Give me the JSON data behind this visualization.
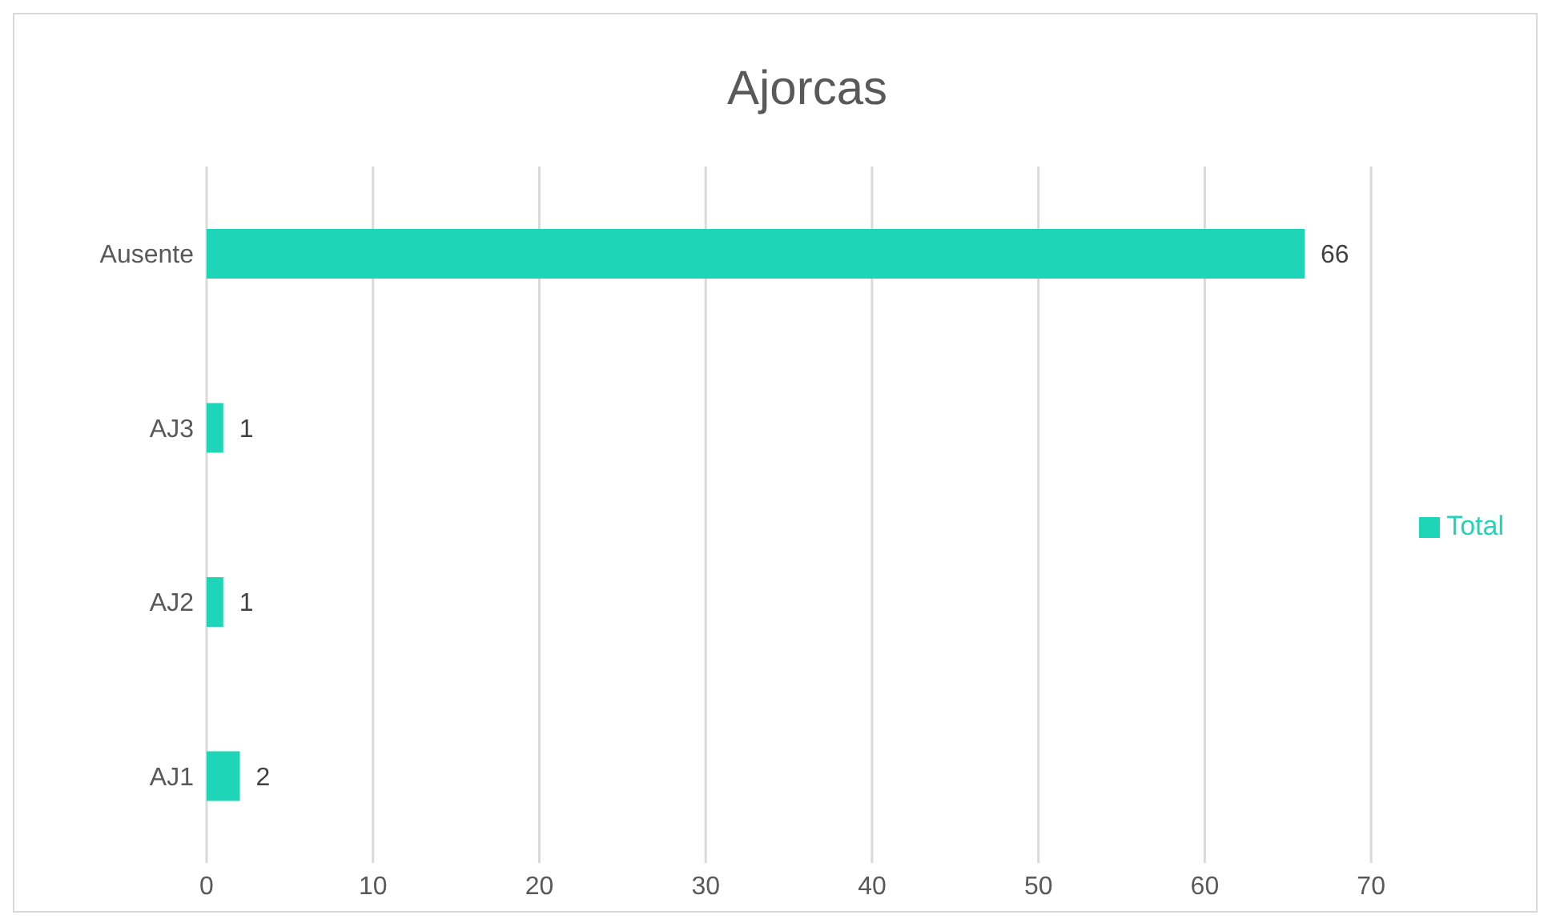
{
  "chart_data": {
    "type": "bar",
    "orientation": "horizontal",
    "title": "Ajorcas",
    "categories": [
      "Ausente",
      "AJ3",
      "AJ2",
      "AJ1"
    ],
    "series": [
      {
        "name": "Total",
        "color": "#1fd5b8",
        "values": [
          66,
          1,
          1,
          2
        ]
      }
    ],
    "xlim": [
      0,
      70
    ],
    "xticks": [
      0,
      10,
      20,
      30,
      40,
      50,
      60,
      70
    ],
    "grid": "x",
    "legend": "right",
    "data_labels": true
  }
}
